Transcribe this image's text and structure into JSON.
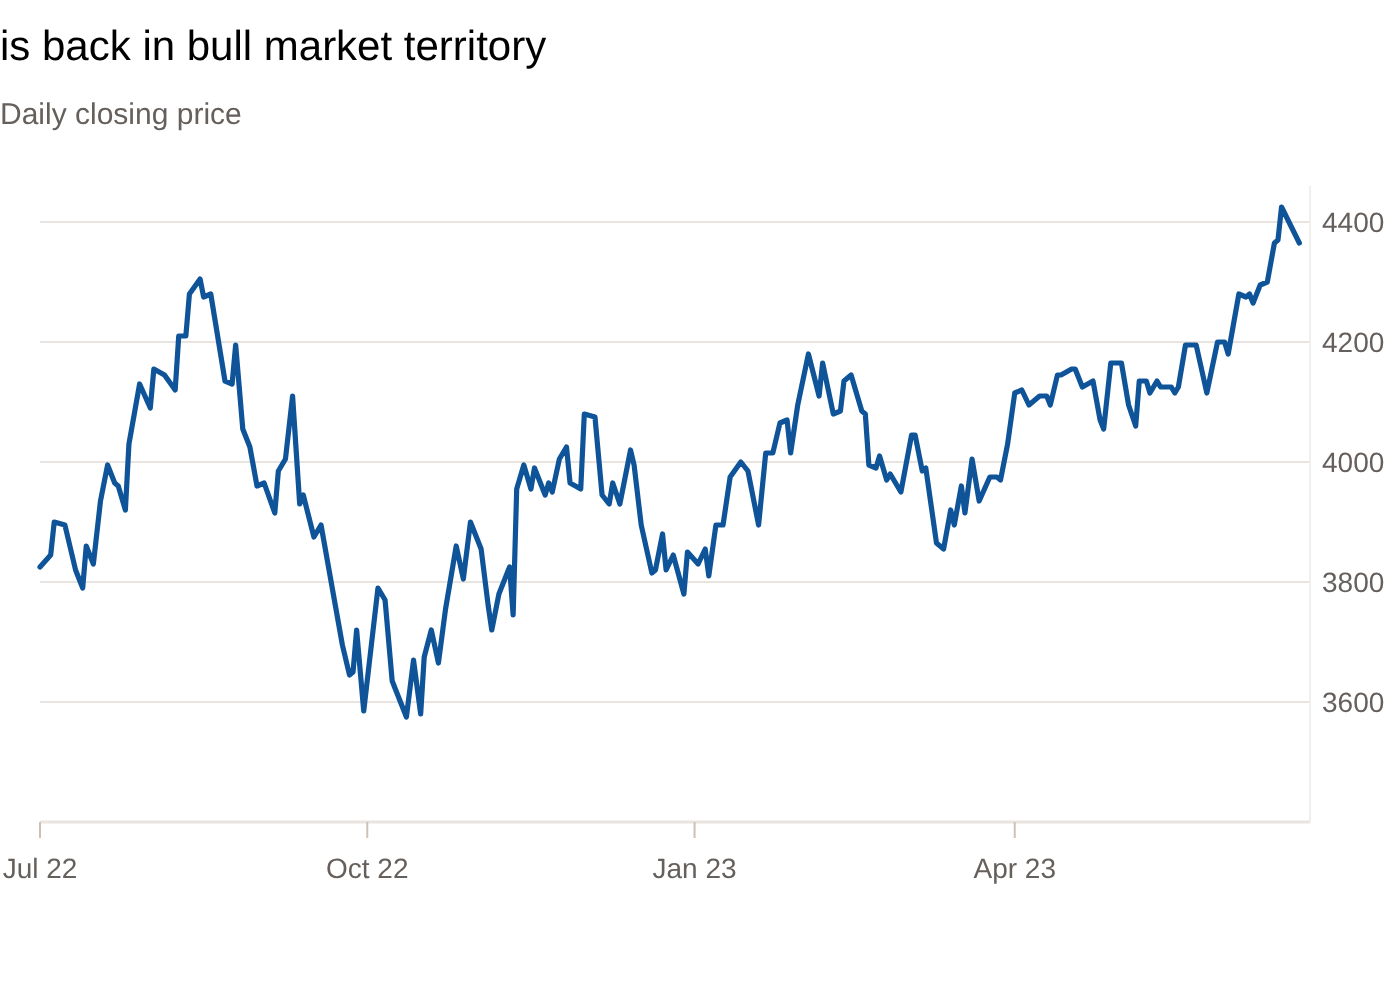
{
  "chart_data": {
    "type": "line",
    "title": "is back in bull market territory",
    "subtitle": "Daily closing price",
    "x": [
      "2022-07-01",
      "2022-07-04",
      "2022-07-05",
      "2022-07-08",
      "2022-07-11",
      "2022-07-13",
      "2022-07-14",
      "2022-07-16",
      "2022-07-18",
      "2022-07-20",
      "2022-07-22",
      "2022-07-23",
      "2022-07-25",
      "2022-07-26",
      "2022-07-29",
      "2022-08-01",
      "2022-08-02",
      "2022-08-05",
      "2022-08-08",
      "2022-08-09",
      "2022-08-11",
      "2022-08-12",
      "2022-08-15",
      "2022-08-16",
      "2022-08-18",
      "2022-08-22",
      "2022-08-24",
      "2022-08-25",
      "2022-08-27",
      "2022-08-29",
      "2022-08-31",
      "2022-09-02",
      "2022-09-05",
      "2022-09-06",
      "2022-09-08",
      "2022-09-10",
      "2022-09-12",
      "2022-09-13",
      "2022-09-16",
      "2022-09-18",
      "2022-09-21",
      "2022-09-24",
      "2022-09-26",
      "2022-09-27",
      "2022-09-28",
      "2022-09-30",
      "2022-10-04",
      "2022-10-06",
      "2022-10-08",
      "2022-10-12",
      "2022-10-14",
      "2022-10-16",
      "2022-10-17",
      "2022-10-19",
      "2022-10-21",
      "2022-10-23",
      "2022-10-26",
      "2022-10-28",
      "2022-10-30",
      "2022-11-02",
      "2022-11-04",
      "2022-11-05",
      "2022-11-07",
      "2022-11-10",
      "2022-11-11",
      "2022-11-12",
      "2022-11-14",
      "2022-11-16",
      "2022-11-17",
      "2022-11-20",
      "2022-11-21",
      "2022-11-22",
      "2022-11-24",
      "2022-11-26",
      "2022-11-27",
      "2022-11-30",
      "2022-12-01",
      "2022-12-04",
      "2022-12-06",
      "2022-12-08",
      "2022-12-09",
      "2022-12-11",
      "2022-12-14",
      "2022-12-15",
      "2022-12-17",
      "2022-12-20",
      "2022-12-21",
      "2022-12-23",
      "2022-12-24",
      "2022-12-26",
      "2022-12-29",
      "2022-12-30",
      "2023-01-02",
      "2023-01-04",
      "2023-01-05",
      "2023-01-07",
      "2023-01-09",
      "2023-01-11",
      "2023-01-14",
      "2023-01-16",
      "2023-01-19",
      "2023-01-21",
      "2023-01-23",
      "2023-01-25",
      "2023-01-27",
      "2023-01-28",
      "2023-01-30",
      "2023-02-02",
      "2023-02-05",
      "2023-02-06",
      "2023-02-09",
      "2023-02-11",
      "2023-02-12",
      "2023-02-14",
      "2023-02-17",
      "2023-02-18",
      "2023-02-19",
      "2023-02-21",
      "2023-02-22",
      "2023-02-24",
      "2023-02-25",
      "2023-02-28",
      "2023-03-03",
      "2023-03-04",
      "2023-03-06",
      "2023-03-07",
      "2023-03-10",
      "2023-03-12",
      "2023-03-14",
      "2023-03-15",
      "2023-03-17",
      "2023-03-18",
      "2023-03-20",
      "2023-03-22",
      "2023-03-25",
      "2023-03-27",
      "2023-03-28",
      "2023-03-30",
      "2023-04-01",
      "2023-04-03",
      "2023-04-05",
      "2023-04-08",
      "2023-04-10",
      "2023-04-11",
      "2023-04-13",
      "2023-04-14",
      "2023-04-17",
      "2023-04-18",
      "2023-04-20",
      "2023-04-23",
      "2023-04-25",
      "2023-04-26",
      "2023-04-28",
      "2023-05-01",
      "2023-05-03",
      "2023-05-05",
      "2023-05-06",
      "2023-05-08",
      "2023-05-09",
      "2023-05-11",
      "2023-05-12",
      "2023-05-15",
      "2023-05-16",
      "2023-05-17",
      "2023-05-19",
      "2023-05-22",
      "2023-05-25",
      "2023-05-28",
      "2023-05-30",
      "2023-05-31",
      "2023-06-03",
      "2023-06-05",
      "2023-06-06",
      "2023-06-07",
      "2023-06-09",
      "2023-06-11",
      "2023-06-13",
      "2023-06-14",
      "2023-06-15",
      "2023-06-20"
    ],
    "series": [
      {
        "color": "#0f5499",
        "values": [
          3825,
          3845,
          3900,
          3895,
          3820,
          3790,
          3860,
          3830,
          3935,
          3995,
          3965,
          3960,
          3920,
          4030,
          4130,
          4090,
          4155,
          4145,
          4120,
          4210,
          4210,
          4280,
          4305,
          4275,
          4280,
          4135,
          4130,
          4195,
          4055,
          4025,
          3960,
          3965,
          3915,
          3985,
          4005,
          4110,
          3930,
          3945,
          3875,
          3895,
          3795,
          3695,
          3645,
          3650,
          3720,
          3585,
          3790,
          3770,
          3635,
          3575,
          3670,
          3580,
          3675,
          3720,
          3665,
          3755,
          3860,
          3805,
          3900,
          3855,
          3760,
          3720,
          3780,
          3825,
          3745,
          3955,
          3995,
          3955,
          3990,
          3945,
          3965,
          3950,
          4005,
          4025,
          3965,
          3955,
          4080,
          4075,
          3945,
          3930,
          3965,
          3930,
          4020,
          3995,
          3895,
          3815,
          3820,
          3880,
          3820,
          3845,
          3780,
          3850,
          3830,
          3855,
          3810,
          3895,
          3895,
          3975,
          4000,
          3985,
          3895,
          4015,
          4015,
          4065,
          4070,
          4015,
          4095,
          4180,
          4110,
          4165,
          4080,
          4085,
          4135,
          4145,
          4085,
          4080,
          3995,
          3990,
          4010,
          3970,
          3980,
          3950,
          4045,
          4045,
          3985,
          3990,
          3865,
          3855,
          3920,
          3895,
          3960,
          3915,
          4005,
          3935,
          3975,
          3975,
          3970,
          4030,
          4115,
          4120,
          4095,
          4110,
          4110,
          4095,
          4145,
          4145,
          4155,
          4155,
          4125,
          4135,
          4070,
          4055,
          4165,
          4165,
          4095,
          4060,
          4135,
          4135,
          4115,
          4135,
          4125,
          4125,
          4115,
          4125,
          4195,
          4195,
          4115,
          4200,
          4200,
          4180,
          4280,
          4275,
          4280,
          4265,
          4295,
          4300,
          4365,
          4370,
          4425,
          4365
        ]
      }
    ],
    "xlim": [
      "2022-07-01",
      "2023-06-23"
    ],
    "xticks": [
      {
        "value": "2022-07-01",
        "label": "Jul 22"
      },
      {
        "value": "2022-10-01",
        "label": "Oct 22"
      },
      {
        "value": "2023-01-01",
        "label": "Jan 23"
      },
      {
        "value": "2023-04-01",
        "label": "Apr 23"
      }
    ],
    "ylim": [
      3400,
      4460
    ],
    "yticks": [
      3600,
      3800,
      4000,
      4200,
      4400
    ],
    "grid": "y",
    "marker": "none",
    "line_style": "solid"
  }
}
